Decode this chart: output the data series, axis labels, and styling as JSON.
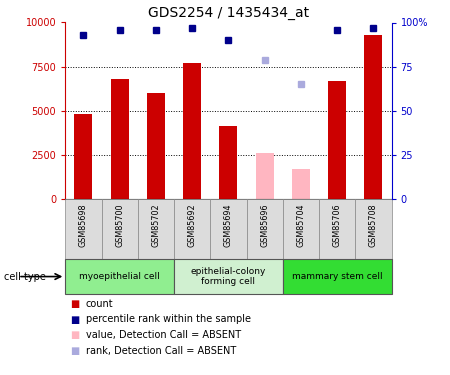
{
  "title": "GDS2254 / 1435434_at",
  "samples": [
    "GSM85698",
    "GSM85700",
    "GSM85702",
    "GSM85692",
    "GSM85694",
    "GSM85696",
    "GSM85704",
    "GSM85706",
    "GSM85708"
  ],
  "counts": [
    4800,
    6800,
    6000,
    7700,
    4100,
    null,
    null,
    6700,
    9300
  ],
  "absent_values": [
    null,
    null,
    null,
    null,
    null,
    2600,
    1700,
    null,
    null
  ],
  "percentile_ranks": [
    93,
    96,
    96,
    97,
    90,
    null,
    null,
    96,
    97
  ],
  "absent_ranks": [
    null,
    null,
    null,
    null,
    null,
    79,
    65,
    null,
    null
  ],
  "cell_types": [
    {
      "label": "myoepithelial cell",
      "start": 0,
      "end": 3,
      "color": "#90EE90"
    },
    {
      "label": "epithelial-colony\nforming cell",
      "start": 3,
      "end": 6,
      "color": "#d0f0d0"
    },
    {
      "label": "mammary stem cell",
      "start": 6,
      "end": 9,
      "color": "#33DD33"
    }
  ],
  "bar_color_present": "#CC0000",
  "bar_color_absent": "#FFB6C1",
  "dot_color_present": "#00008B",
  "dot_color_absent": "#AAAADD",
  "ylim_left": [
    0,
    10000
  ],
  "ylim_right": [
    0,
    100
  ],
  "yticks_left": [
    0,
    2500,
    5000,
    7500,
    10000
  ],
  "ytick_labels_left": [
    "0",
    "2500",
    "5000",
    "7500",
    "10000"
  ],
  "yticks_right": [
    0,
    25,
    50,
    75,
    100
  ],
  "ytick_labels_right": [
    "0",
    "25",
    "50",
    "75",
    "100%"
  ],
  "bar_width": 0.5,
  "sample_header_color": "#DCDCDC",
  "left_axis_color": "#CC0000",
  "right_axis_color": "#0000CC",
  "legend_items": [
    {
      "color": "#CC0000",
      "label": "count"
    },
    {
      "color": "#00008B",
      "label": "percentile rank within the sample"
    },
    {
      "color": "#FFB6C1",
      "label": "value, Detection Call = ABSENT"
    },
    {
      "color": "#AAAADD",
      "label": "rank, Detection Call = ABSENT"
    }
  ]
}
